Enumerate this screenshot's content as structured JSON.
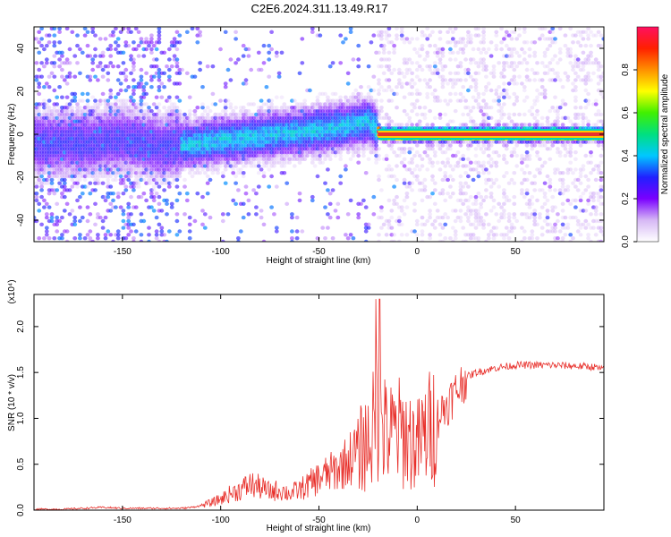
{
  "title": "C2E6.2024.311.13.49.R17",
  "colors": {
    "snr_line": "#e8302b",
    "axis": "#000000",
    "ridge": "#e83030"
  },
  "chart_data": [
    {
      "type": "heatmap",
      "title": "C2E6.2024.311.13.49.R17",
      "xlabel": "Height of straight line (km)",
      "ylabel": "Frequency (Hz)",
      "xlim": [
        -195,
        95
      ],
      "ylim": [
        -50,
        50
      ],
      "xticks": [
        -150,
        -100,
        -50,
        0,
        50
      ],
      "xtick_labels": [
        "-150",
        "-100",
        "-50",
        "0",
        "50"
      ],
      "yticks": [
        -40,
        -20,
        0,
        20,
        40
      ],
      "ytick_labels": [
        "-40",
        "-20",
        "0",
        "20",
        "40"
      ],
      "colorbar": {
        "label": "Normalized spectral amplitude",
        "range": [
          0.0,
          1.0
        ],
        "ticks": [
          0.0,
          0.2,
          0.4,
          0.6,
          0.8
        ],
        "tick_labels": [
          "0.0",
          "0.2",
          "0.4",
          "0.6",
          "0.8"
        ],
        "stops": [
          "#ffffff",
          "#d6b8f5",
          "#7a00ff",
          "#2020ff",
          "#00c8ff",
          "#00e080",
          "#40f000",
          "#ffff00",
          "#ff9000",
          "#ff2000",
          "#ff1060"
        ]
      },
      "ridge": {
        "x": [
          -165,
          -150,
          -130,
          -110,
          -90,
          -70,
          -50,
          -35,
          -25,
          -18,
          -10,
          0,
          10,
          20,
          40,
          60,
          94
        ],
        "y": [
          -4,
          -2,
          -6,
          -4,
          -2,
          0,
          2,
          4,
          6,
          0,
          0,
          0,
          0,
          0,
          0,
          0,
          0
        ]
      }
    },
    {
      "type": "line",
      "title": "",
      "xlabel": "Height of straight line (km)",
      "ylabel": "SNR (10 * v/v)",
      "y_multiplier": "(x10⁴)",
      "xlim": [
        -195,
        95
      ],
      "ylim": [
        0.0,
        2.35
      ],
      "xticks": [
        -150,
        -100,
        -50,
        0,
        50
      ],
      "xtick_labels": [
        "-150",
        "-100",
        "-50",
        "0",
        "50"
      ],
      "yticks": [
        0.0,
        0.5,
        1.0,
        1.5,
        2.0
      ],
      "ytick_labels": [
        "0.0",
        "0.5",
        "1.0",
        "1.5",
        "2.0"
      ],
      "series": [
        {
          "name": "SNR",
          "x": [
            -195,
            -180,
            -170,
            -160,
            -150,
            -140,
            -130,
            -120,
            -115,
            -110,
            -105,
            -100,
            -95,
            -90,
            -85,
            -80,
            -75,
            -70,
            -65,
            -60,
            -55,
            -50,
            -45,
            -40,
            -35,
            -30,
            -25,
            -22,
            -20,
            -18,
            -15,
            -10,
            -5,
            0,
            5,
            10,
            15,
            20,
            25,
            30,
            40,
            50,
            60,
            70,
            80,
            90,
            95
          ],
          "y": [
            0.01,
            0.01,
            0.02,
            0.03,
            0.02,
            0.02,
            0.02,
            0.02,
            0.03,
            0.05,
            0.08,
            0.12,
            0.18,
            0.22,
            0.28,
            0.25,
            0.2,
            0.22,
            0.18,
            0.22,
            0.28,
            0.35,
            0.4,
            0.45,
            0.55,
            0.65,
            0.75,
            0.9,
            1.1,
            0.9,
            0.8,
            0.85,
            0.8,
            0.7,
            0.85,
            1.0,
            1.15,
            1.3,
            1.45,
            1.5,
            1.55,
            1.58,
            1.58,
            1.58,
            1.57,
            1.56,
            1.53
          ]
        }
      ]
    }
  ]
}
